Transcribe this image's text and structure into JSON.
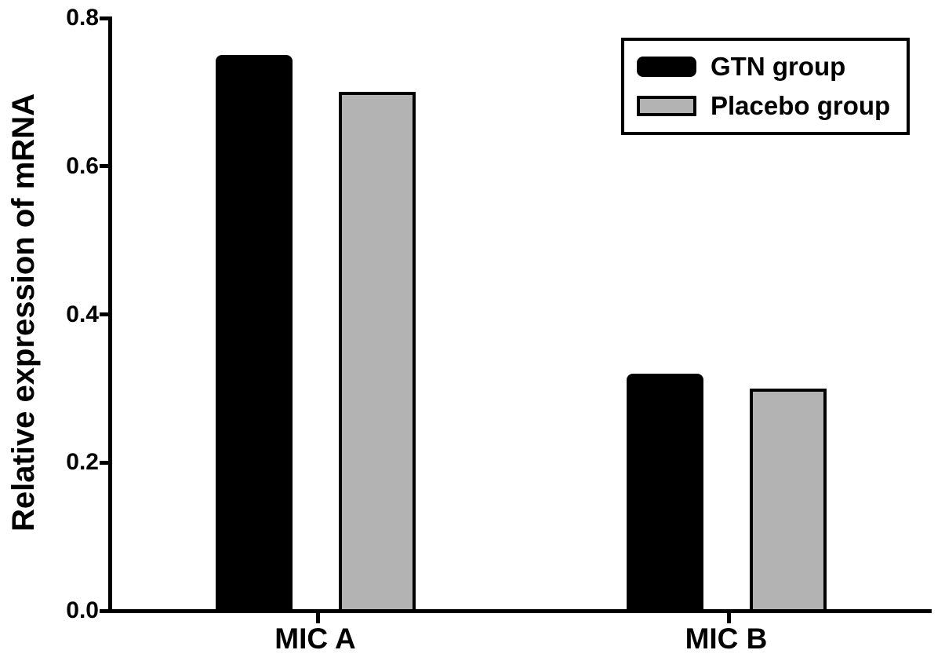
{
  "chart_data": {
    "type": "bar",
    "title": "",
    "ylabel": "Relative expression of mRNA",
    "xlabel": "",
    "categories": [
      "MIC A",
      "MIC B"
    ],
    "series": [
      {
        "name": "GTN group",
        "color": "#000000",
        "values": [
          0.75,
          0.32
        ]
      },
      {
        "name": "Placebo group",
        "color": "#b3b3b3",
        "values": [
          0.7,
          0.3
        ]
      }
    ],
    "ylim": [
      0,
      0.8
    ],
    "yticks": [
      0.0,
      0.2,
      0.4,
      0.6,
      0.8
    ],
    "ytick_decimals": 1,
    "legend_position": "top-right",
    "grid": false,
    "axis_color": "#000000",
    "background": "#ffffff"
  }
}
